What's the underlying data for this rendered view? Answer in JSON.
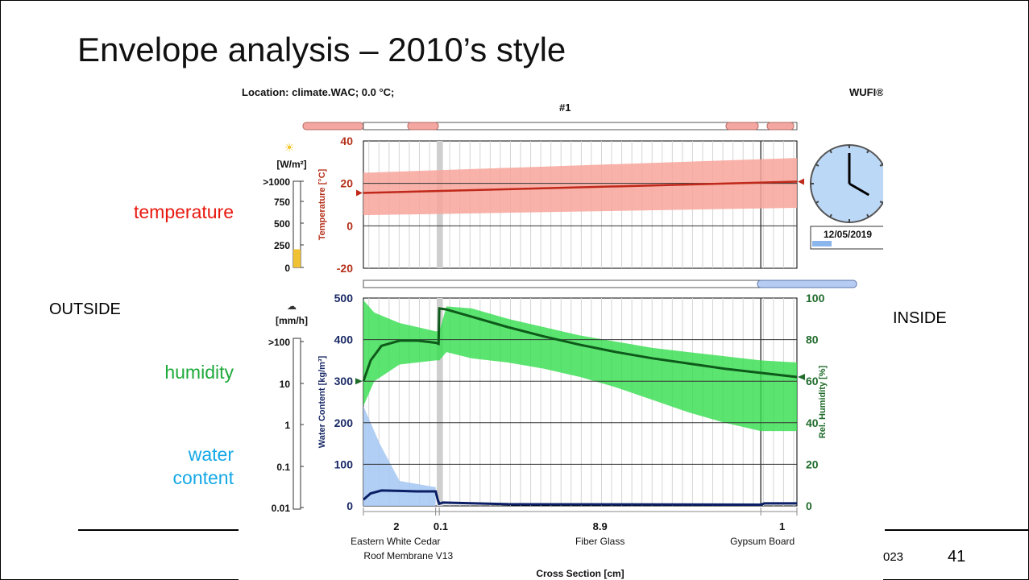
{
  "slide": {
    "title": "Envelope analysis – 2010’s style",
    "labels": {
      "temperature": "temperature",
      "humidity": "humidity",
      "water_line1": "water",
      "water_line2": "content",
      "outside": "OUTSIDE",
      "inside": "INSIDE"
    },
    "footer": {
      "date_fragment": "023",
      "page_number": "41"
    },
    "colors": {
      "temperature": "#e8180e",
      "humidity": "#1faa3a",
      "water": "#15a8e6",
      "text": "#000000"
    }
  },
  "wufi": {
    "location": "Location: climate.WAC; 0.0 °C;",
    "brand": "WUFI®",
    "case_id": "#1",
    "date": "12/05/2019",
    "clock": {
      "hour": 4,
      "minute": 0
    },
    "radiation": {
      "unit": "[W/m²]",
      "ticks": [
        ">1000",
        "750",
        "500",
        "250",
        "0"
      ],
      "fill_fraction": 0.08
    },
    "rain": {
      "unit": "[mm/h]",
      "ticks": [
        ">100",
        "10",
        "1",
        "0.1",
        "0.01"
      ]
    }
  },
  "chart_data": [
    {
      "type": "line",
      "name": "temperature-panel",
      "ylabel": "Temperature [°C]",
      "ylim": [
        -20,
        40
      ],
      "yticks": [
        40,
        20,
        0,
        -20
      ],
      "xlim": [
        0,
        12.0
      ],
      "grid": true,
      "series": [
        {
          "name": "Temperature",
          "color": "#c0281a",
          "x": [
            0,
            12.0
          ],
          "y": [
            15.5,
            20.8
          ]
        },
        {
          "name": "Temperature range",
          "color": "#f7a49a",
          "x": [
            0,
            12.0
          ],
          "y_low": [
            5,
            8.5
          ],
          "y_high": [
            25,
            32
          ]
        }
      ]
    },
    {
      "type": "line",
      "name": "moisture-panel",
      "xlabel": "Cross Section [cm]",
      "ylabel_left": "Water Content [kg/m³]",
      "ylabel_right": "Rel. Humidity [%]",
      "ylim_left": [
        0,
        500
      ],
      "yticks_left": [
        500,
        400,
        300,
        200,
        100,
        0
      ],
      "ylim_right": [
        0,
        100
      ],
      "yticks_right": [
        100,
        80,
        60,
        40,
        20,
        0
      ],
      "xlim": [
        0,
        12.0
      ],
      "grid": true,
      "layers": [
        {
          "thickness": "2",
          "name": "Eastern White Cedar"
        },
        {
          "thickness": "0.1",
          "name": "Roof Membrane V13"
        },
        {
          "thickness": "8.9",
          "name": "Fiber Glass"
        },
        {
          "thickness": "1",
          "name": "Gypsum Board"
        }
      ],
      "layer_bounds": [
        0,
        2.0,
        2.1,
        11.0,
        12.0
      ],
      "series": [
        {
          "name": "Rel. Humidity",
          "axis": "right",
          "color": "#0e5a1a",
          "x": [
            0,
            0.2,
            0.5,
            1.0,
            1.5,
            2.0,
            2.08,
            2.1,
            2.3,
            3.0,
            4.0,
            5.0,
            6.0,
            7.0,
            8.0,
            9.0,
            10.0,
            11.0,
            12.0
          ],
          "y": [
            60,
            70,
            77,
            79.5,
            79.5,
            78.5,
            78,
            95,
            94.5,
            91,
            86,
            81.5,
            77.5,
            74,
            71,
            68.5,
            66,
            64,
            62
          ]
        },
        {
          "name": "Rel. Humidity max",
          "axis": "right",
          "color": "#33dd4e",
          "x": [
            0,
            0.3,
            1.0,
            2.0,
            2.1,
            2.3,
            3.0,
            4.0,
            5.0,
            6.0,
            7.0,
            8.0,
            9.0,
            10.0,
            11.0,
            12.0
          ],
          "y": [
            99,
            93,
            88,
            84,
            84,
            96,
            95,
            90,
            86,
            82,
            79,
            76,
            74,
            72,
            70,
            69
          ]
        },
        {
          "name": "Rel. Humidity min",
          "axis": "right",
          "color": "#33dd4e",
          "x": [
            0,
            0.3,
            1.0,
            2.0,
            2.1,
            2.3,
            3.0,
            4.0,
            5.0,
            6.0,
            7.0,
            8.0,
            9.0,
            10.0,
            11.0,
            12.0
          ],
          "y": [
            48,
            60,
            68,
            70,
            70,
            74,
            71,
            69,
            66,
            62,
            57,
            51,
            45,
            40,
            36,
            36
          ]
        },
        {
          "name": "Water Content",
          "axis": "left",
          "color": "#0a1f66",
          "x": [
            0,
            0.2,
            0.5,
            1.0,
            1.5,
            2.0,
            2.06,
            2.1,
            2.2,
            4.0,
            11.0,
            11.1,
            12.0
          ],
          "y": [
            15,
            30,
            37,
            36,
            35,
            35,
            14,
            5,
            8,
            4,
            3,
            6,
            6
          ]
        }
      ]
    }
  ]
}
